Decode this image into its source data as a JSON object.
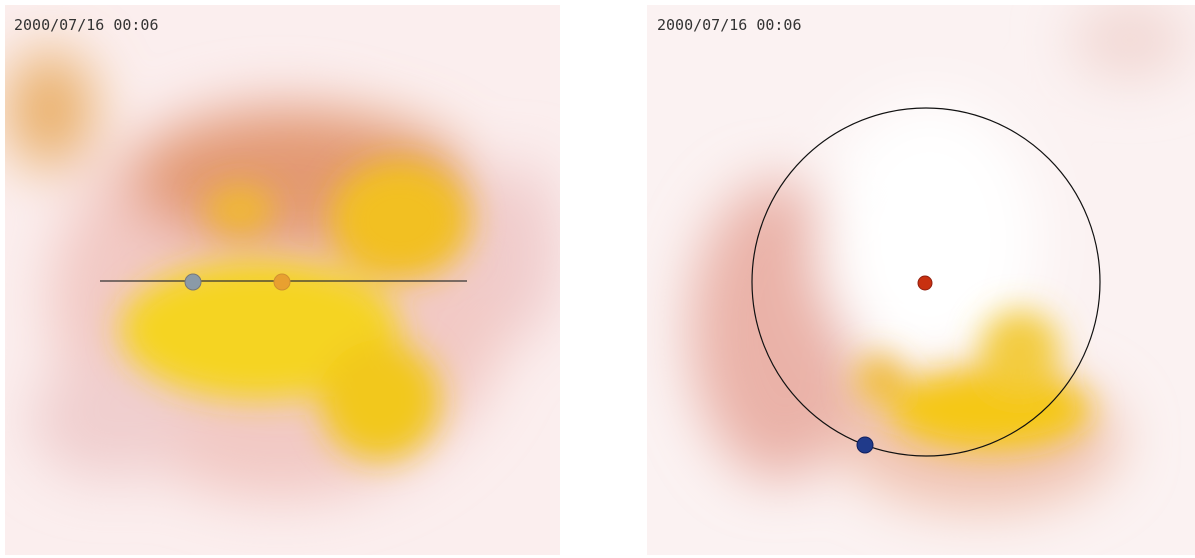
{
  "panels": [
    {
      "timestamp": "2000/07/16 00:06"
    },
    {
      "timestamp": "2000/07/16 00:06"
    }
  ]
}
